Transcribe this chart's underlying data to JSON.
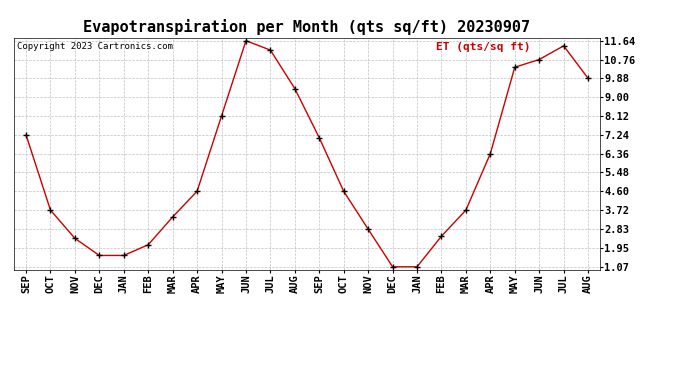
{
  "title": "Evapotranspiration per Month (qts sq/ft) 20230907",
  "copyright": "Copyright 2023 Cartronics.com",
  "legend_label": "ET (qts/sq ft)",
  "categories": [
    "SEP",
    "OCT",
    "NOV",
    "DEC",
    "JAN",
    "FEB",
    "MAR",
    "APR",
    "MAY",
    "JUN",
    "JUL",
    "AUG",
    "SEP",
    "OCT",
    "NOV",
    "DEC",
    "JAN",
    "FEB",
    "MAR",
    "APR",
    "MAY",
    "JUN",
    "JUL",
    "AUG"
  ],
  "values": [
    7.24,
    3.72,
    2.4,
    1.6,
    1.6,
    2.1,
    3.4,
    4.6,
    8.12,
    11.64,
    11.2,
    9.4,
    7.1,
    4.6,
    2.83,
    1.07,
    1.07,
    2.5,
    3.72,
    6.36,
    10.4,
    10.76,
    11.4,
    9.88
  ],
  "line_color": "#cc0000",
  "marker_color": "#000000",
  "ylim_min": 1.07,
  "ylim_max": 11.64,
  "yticks": [
    1.07,
    1.95,
    2.83,
    3.72,
    4.6,
    5.48,
    6.36,
    7.24,
    8.12,
    9.0,
    9.88,
    10.76,
    11.64
  ],
  "grid_color": "#bbbbbb",
  "background_color": "#ffffff",
  "title_fontsize": 11,
  "axis_fontsize": 7.5,
  "copyright_fontsize": 6.5,
  "legend_fontsize": 8,
  "legend_color": "#cc0000"
}
